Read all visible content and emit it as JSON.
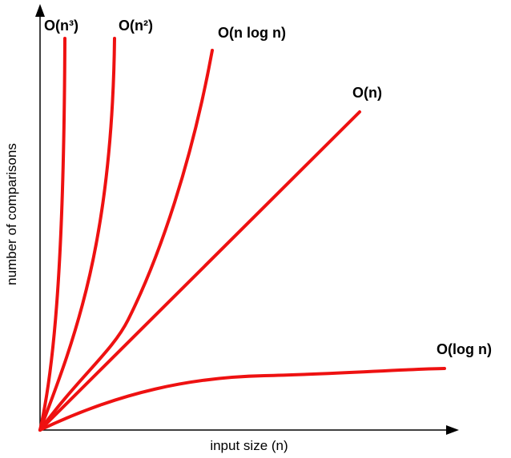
{
  "labels": {
    "cubic": "O(n³)",
    "quadratic": "O(n²)",
    "linearithmic": "O(n log n)",
    "linear": "O(n)",
    "logarithmic": "O(log n)"
  },
  "x_axis": "input size (n)",
  "y_axis": "number of comparisons"
}
